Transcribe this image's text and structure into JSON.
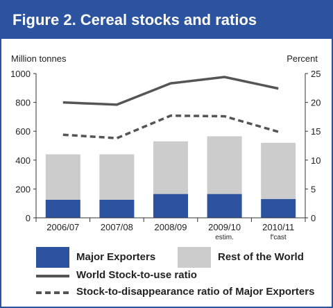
{
  "header": {
    "title": "Figure 2. Cereal stocks and ratios"
  },
  "colors": {
    "accent": "#2c53a0",
    "major_exporters": "#2c53a0",
    "rest_of_world": "#cccccc",
    "world_ratio_line": "#555555",
    "major_ratio_line": "#555555"
  },
  "chart_data": {
    "type": "bar",
    "categories": [
      "2006/07",
      "2007/08",
      "2008/09",
      "2009/10",
      "2010/11"
    ],
    "category_sublabels": [
      "",
      "",
      "",
      "estim.",
      "f'cast"
    ],
    "stacked": true,
    "ylabel": "Million tonnes",
    "y2label": "Percent",
    "ylim": [
      0,
      1000
    ],
    "y2lim": [
      0,
      25
    ],
    "yticks": [
      0,
      200,
      400,
      600,
      800,
      1000
    ],
    "y2ticks": [
      0,
      5,
      10,
      15,
      20,
      25
    ],
    "grid": false,
    "legend_position": "bottom",
    "series": [
      {
        "name": "Major Exporters",
        "kind": "bar",
        "axis": "left",
        "values": [
          125,
          125,
          165,
          165,
          130
        ]
      },
      {
        "name": "Rest of the World",
        "kind": "bar",
        "axis": "left",
        "values": [
          315,
          315,
          365,
          400,
          390
        ]
      },
      {
        "name": "World Stock-to-use ratio",
        "kind": "line",
        "style": "solid",
        "axis": "right",
        "values": [
          20.0,
          19.6,
          23.3,
          24.4,
          22.4
        ]
      },
      {
        "name": "Stock-to-disappearance ratio of Major Exporters",
        "kind": "line",
        "style": "dashed",
        "axis": "right",
        "values": [
          14.4,
          13.8,
          17.7,
          17.6,
          14.9
        ]
      }
    ]
  }
}
